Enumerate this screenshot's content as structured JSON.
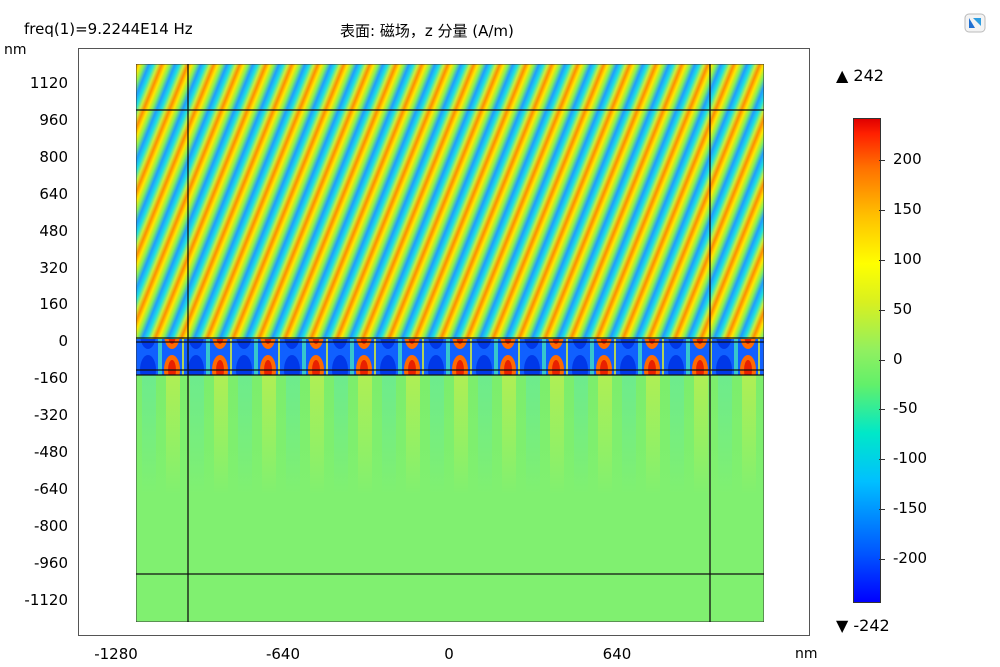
{
  "header": {
    "freq_label": "freq(1)=9.2244E14 Hz",
    "plot_title": "表面: 磁场，z 分量 (A/m)"
  },
  "chart_data": {
    "type": "heatmap",
    "title": "表面: 磁场，z 分量 (A/m)",
    "xlabel": "nm",
    "ylabel": "nm",
    "xlim": [
      -1280,
      1280
    ],
    "ylim": [
      -1200,
      1200
    ],
    "x_ticks": [
      "-1280",
      "-640",
      "0",
      "640"
    ],
    "y_ticks": [
      "1120",
      "960",
      "800",
      "640",
      "480",
      "320",
      "160",
      "0",
      "-160",
      "-320",
      "-480",
      "-640",
      "-800",
      "-960",
      "-1120"
    ],
    "colorbar": {
      "max_label": "242",
      "min_label": "-242",
      "ticks": [
        "200",
        "150",
        "100",
        "50",
        "0",
        "-50",
        "-100",
        "-150",
        "-200"
      ],
      "range": [
        -242,
        242
      ]
    },
    "domain_lines_y": [
      1000,
      0,
      -130,
      -980
    ],
    "domain_lines_x": [
      -1070,
      1000
    ]
  },
  "icons": {
    "logo": "app-logo-icon",
    "max_marker": "triangle-up-icon",
    "min_marker": "triangle-down-icon"
  }
}
